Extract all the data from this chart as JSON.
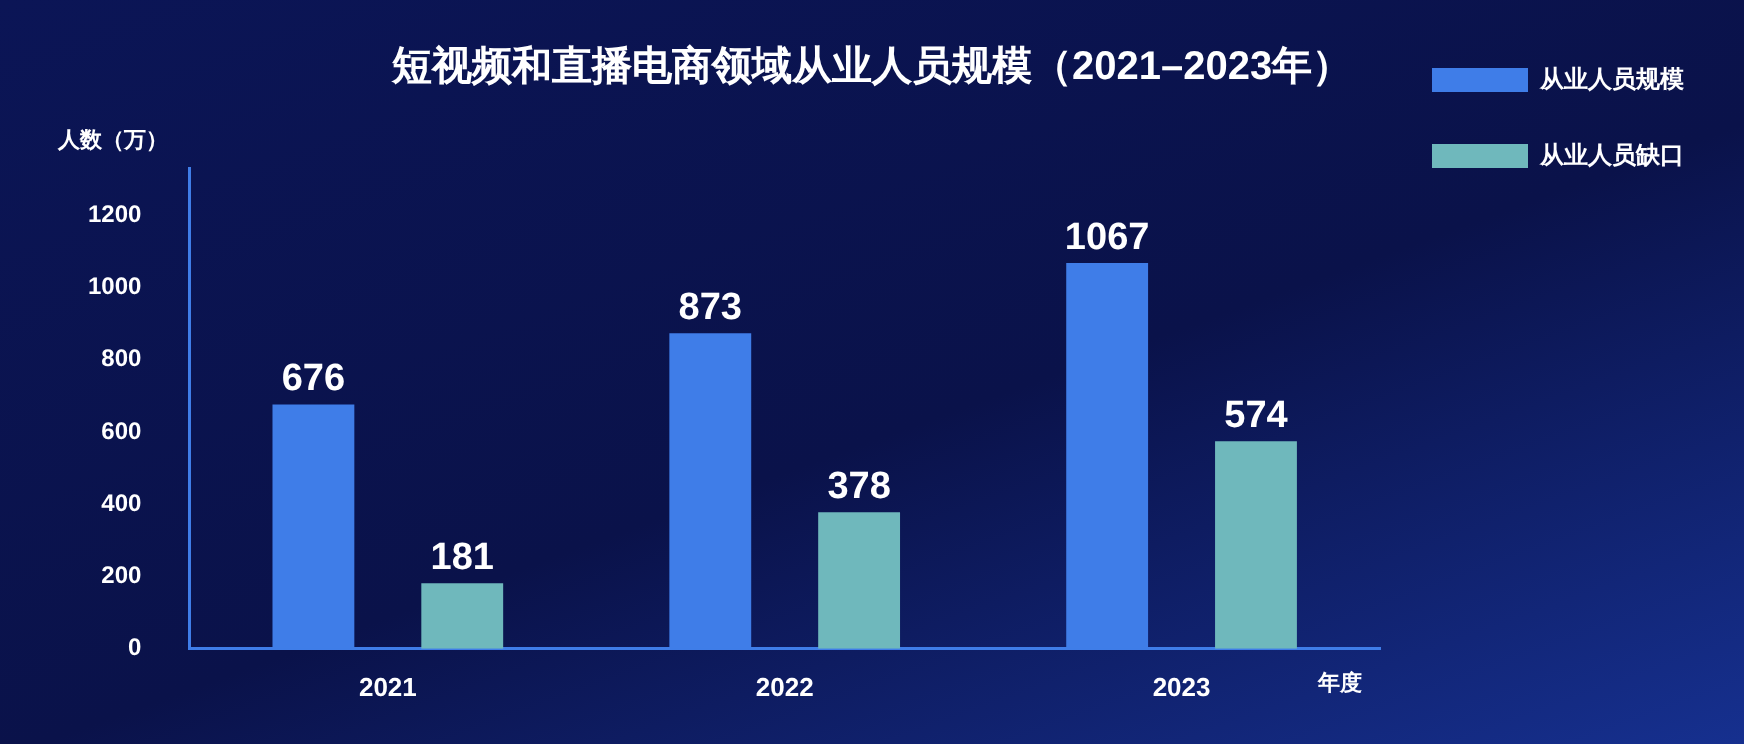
{
  "chart_data": {
    "type": "bar",
    "title": "短视频和直播电商领域从业人员规模（2021–2023年）",
    "xlabel": "年度",
    "ylabel": "人数（万）",
    "categories": [
      "2021",
      "2022",
      "2023"
    ],
    "series": [
      {
        "name": "从业人员规模",
        "color": "#3f7de8",
        "values": [
          676,
          873,
          1067
        ]
      },
      {
        "name": "从业人员缺口",
        "color": "#6fb8bc",
        "values": [
          181,
          378,
          574
        ]
      }
    ],
    "ylim": [
      0,
      1330
    ],
    "yticks": [
      0,
      200,
      400,
      600,
      800,
      1000,
      1200
    ],
    "grid": false,
    "legend": "top right",
    "data_labels": true
  }
}
